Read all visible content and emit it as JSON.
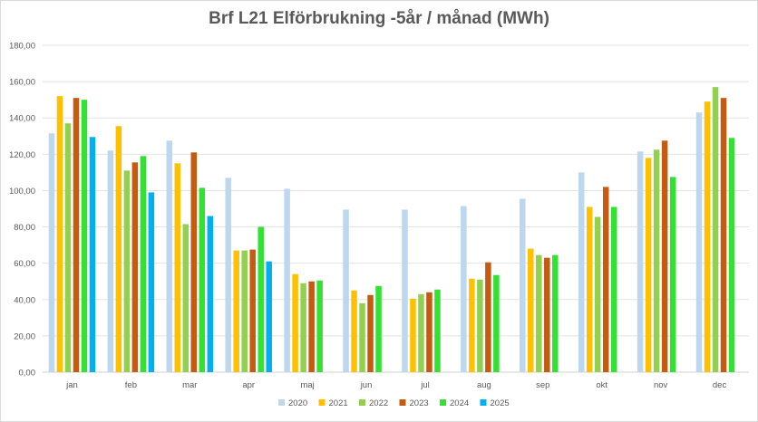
{
  "chart_data": {
    "type": "bar",
    "title": "Brf L21  Elförbrukning  -5år  / månad (MWh)",
    "xlabel": "",
    "ylabel": "",
    "ylim": [
      0,
      180
    ],
    "ytick_step": 20,
    "ytick_labels": [
      "0,00",
      "20,00",
      "40,00",
      "60,00",
      "80,00",
      "100,00",
      "120,00",
      "140,00",
      "160,00",
      "180,00"
    ],
    "grid": true,
    "legend_position": "bottom",
    "categories": [
      "jan",
      "feb",
      "mar",
      "apr",
      "maj",
      "jun",
      "jul",
      "aug",
      "sep",
      "okt",
      "nov",
      "dec"
    ],
    "series": [
      {
        "name": "2020",
        "color": "#bdd7ee",
        "values": [
          131.5,
          122,
          127.5,
          107,
          101,
          89.5,
          89.5,
          91.5,
          95.5,
          110,
          121.5,
          143
        ]
      },
      {
        "name": "2021",
        "color": "#ffc000",
        "values": [
          152,
          135.5,
          115,
          67,
          54,
          45,
          40.5,
          51.5,
          68,
          91,
          118,
          149
        ]
      },
      {
        "name": "2022",
        "color": "#92d050",
        "values": [
          137,
          111,
          81.5,
          67,
          49,
          38,
          43,
          51,
          64.5,
          85.5,
          122.5,
          157
        ]
      },
      {
        "name": "2023",
        "color": "#c55a11",
        "values": [
          151,
          115.5,
          121,
          67.5,
          50,
          42.5,
          44,
          60.5,
          63,
          102,
          127.5,
          151
        ]
      },
      {
        "name": "2024",
        "color": "#33e133",
        "values": [
          150,
          119,
          101.5,
          80,
          50.5,
          47.5,
          45.5,
          53.5,
          64.5,
          91,
          107.5,
          129
        ]
      },
      {
        "name": "2025",
        "color": "#00b0f0",
        "values": [
          129.5,
          99,
          86,
          61,
          null,
          null,
          null,
          null,
          null,
          null,
          null,
          null
        ]
      }
    ]
  }
}
